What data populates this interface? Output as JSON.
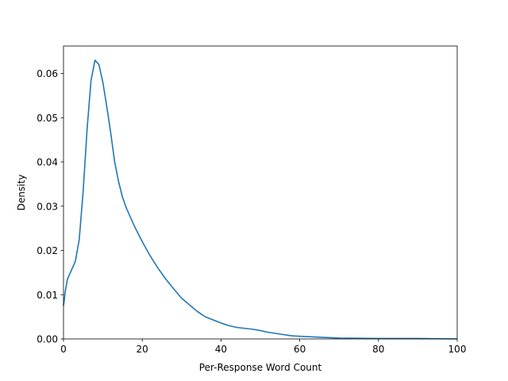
{
  "chart_data": {
    "type": "line",
    "title": "",
    "xlabel": "Per-Response Word Count",
    "ylabel": "Density",
    "xlim": [
      0,
      100
    ],
    "ylim": [
      0,
      0.0662
    ],
    "xticks": [
      0,
      20,
      40,
      60,
      80,
      100
    ],
    "xtick_labels": [
      "0",
      "20",
      "40",
      "60",
      "80",
      "100"
    ],
    "yticks": [
      0.0,
      0.01,
      0.02,
      0.03,
      0.04,
      0.05,
      0.06
    ],
    "ytick_labels": [
      "0.00",
      "0.01",
      "0.02",
      "0.03",
      "0.04",
      "0.05",
      "0.06"
    ],
    "grid": false,
    "legend": "none",
    "line_color": "#1f77b4",
    "series": [
      {
        "x": [
          0,
          0.5,
          1,
          2,
          3,
          4,
          5,
          6,
          7,
          8,
          9,
          10,
          11,
          12,
          13,
          14,
          15,
          16,
          18,
          20,
          22,
          24,
          26,
          28,
          30,
          32,
          34,
          36,
          38,
          40,
          42,
          44,
          46,
          48,
          50,
          52,
          55,
          58,
          60,
          65,
          70,
          80,
          90,
          100
        ],
        "y": [
          0.0075,
          0.011,
          0.0135,
          0.0155,
          0.0175,
          0.0225,
          0.0335,
          0.0475,
          0.0585,
          0.063,
          0.062,
          0.058,
          0.0525,
          0.0465,
          0.04,
          0.0355,
          0.032,
          0.0295,
          0.0255,
          0.022,
          0.0188,
          0.016,
          0.0135,
          0.0113,
          0.0092,
          0.0077,
          0.0062,
          0.005,
          0.0043,
          0.0036,
          0.003,
          0.0026,
          0.0024,
          0.0022,
          0.0019,
          0.0015,
          0.0011,
          0.0007,
          0.0006,
          0.0004,
          0.0002,
          0.0001,
          0.0001,
          0.0
        ]
      }
    ]
  }
}
